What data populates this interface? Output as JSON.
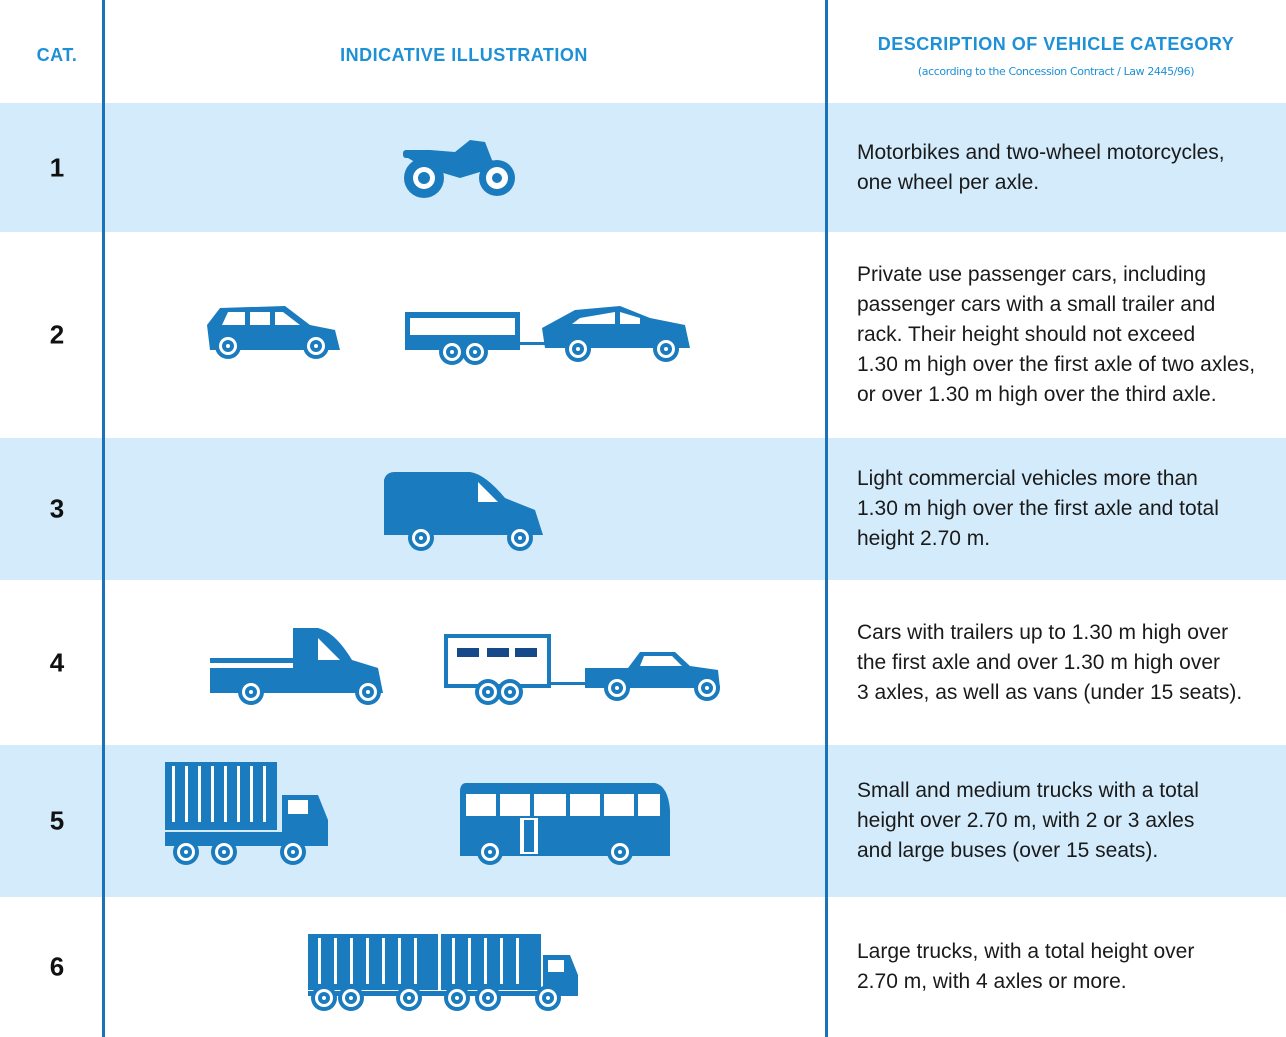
{
  "header": {
    "cat": "CAT.",
    "illustration": "INDICATIVE ILLUSTRATION",
    "description": "DESCRIPTION OF VEHICLE CATEGORY",
    "description_note": "(according to the Concession Contract / Law 2445/96)"
  },
  "rows": [
    {
      "cat": "1",
      "description_lines": [
        "Motorbikes and two-wheel motorcycles,",
        "one wheel per axle."
      ]
    },
    {
      "cat": "2",
      "description_lines": [
        "Private use passenger cars, including",
        "passenger cars with a small trailer and",
        "rack. Their height should not exceed",
        "1.30 m high over the first axle of two axles,",
        "or over 1.30 m high over the third axle."
      ]
    },
    {
      "cat": "3",
      "description_lines": [
        "Light commercial vehicles more than",
        "1.30 m high over the first axle and total",
        "height 2.70 m."
      ]
    },
    {
      "cat": "4",
      "description_lines": [
        "Cars with trailers up to 1.30 m high over",
        "the first axle and over 1.30 m high over",
        "3 axles, as well as vans (under 15 seats)."
      ]
    },
    {
      "cat": "5",
      "description_lines": [
        "Small and medium trucks with a total",
        "height over 2.70 m, with 2 or 3 axles",
        "and large buses (over 15 seats)."
      ]
    },
    {
      "cat": "6",
      "description_lines": [
        "Large trucks, with a total height over",
        "2.70 m, with 4 axles or more."
      ]
    }
  ]
}
